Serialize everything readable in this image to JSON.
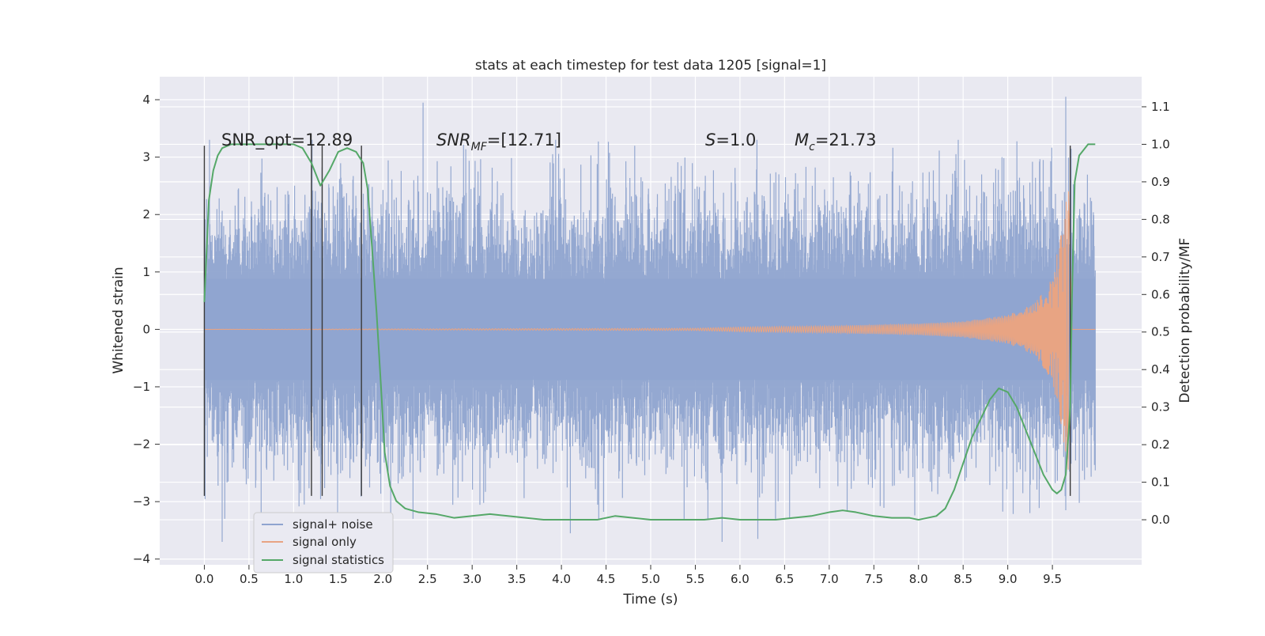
{
  "chart_data": {
    "type": "line",
    "title": "stats at each timestep for test data 1205 [signal=1]",
    "xlabel": "Time (s)",
    "ylabel": "Whitened strain",
    "y2label": "Detection probability/MF",
    "xlim": [
      -0.5,
      10.5
    ],
    "ylim": [
      -4.1,
      4.4
    ],
    "y2lim": [
      -0.12,
      1.18
    ],
    "x_ticks": [
      "0.0",
      "0.5",
      "1.0",
      "1.5",
      "2.0",
      "2.5",
      "3.0",
      "3.5",
      "4.0",
      "4.5",
      "5.0",
      "5.5",
      "6.0",
      "6.5",
      "7.0",
      "7.5",
      "8.0",
      "8.5",
      "9.0",
      "9.5"
    ],
    "y_ticks": [
      -4,
      -3,
      -2,
      -1,
      0,
      1,
      2,
      3,
      4
    ],
    "y_tick_labels": [
      "−4",
      "−3",
      "−2",
      "−1",
      "0",
      "1",
      "2",
      "3",
      "4"
    ],
    "y2_ticks": [
      0.0,
      0.1,
      0.2,
      0.3,
      0.4,
      0.5,
      0.6,
      0.7,
      0.8,
      0.9,
      1.0,
      1.1
    ],
    "y2_tick_labels": [
      "0.0",
      "0.1",
      "0.2",
      "0.3",
      "0.4",
      "0.5",
      "0.6",
      "0.7",
      "0.8",
      "0.9",
      "1.0",
      "1.1"
    ],
    "grid": true,
    "legend_position": "lower-left",
    "annotations": {
      "snr_opt": "SNR_opt=12.89",
      "snr_mf_main": "SNR",
      "snr_mf_sub": "MF",
      "snr_mf_rest": "=[12.71]",
      "s_main": "S",
      "s_rest": "=1.0",
      "mc_main": "M",
      "mc_sub": "c",
      "mc_rest": "=21.73"
    },
    "series": [
      {
        "name": "signal+ noise",
        "color": "#8fa4cf",
        "kind": "noise",
        "x_range": [
          0.0,
          9.98
        ],
        "typical_range": [
          -1.6,
          1.6
        ],
        "extremes": [
          [
            2.45,
            3.95
          ],
          [
            9.65,
            4.05
          ],
          [
            0.2,
            -3.7
          ],
          [
            4.1,
            -3.55
          ],
          [
            5.8,
            -3.7
          ],
          [
            6.2,
            -3.65
          ],
          [
            9.65,
            -3.15
          ]
        ]
      },
      {
        "name": "signal only",
        "color": "#e8a483",
        "kind": "chirp",
        "t_merge": 9.68,
        "envelope": [
          [
            0.0,
            0.0
          ],
          [
            5.5,
            0.02
          ],
          [
            6.0,
            0.04
          ],
          [
            7.0,
            0.06
          ],
          [
            8.0,
            0.1
          ],
          [
            8.5,
            0.14
          ],
          [
            9.0,
            0.25
          ],
          [
            9.3,
            0.45
          ],
          [
            9.5,
            0.9
          ],
          [
            9.6,
            1.7
          ],
          [
            9.68,
            2.5
          ],
          [
            9.72,
            0.0
          ],
          [
            9.98,
            0.0
          ]
        ]
      },
      {
        "name": "signal statistics",
        "color": "#55a868",
        "axis": "right",
        "x": [
          0.0,
          0.05,
          0.1,
          0.15,
          0.2,
          0.3,
          0.5,
          0.7,
          0.9,
          1.0,
          1.1,
          1.2,
          1.3,
          1.4,
          1.5,
          1.6,
          1.7,
          1.78,
          1.83,
          1.88,
          1.93,
          1.98,
          2.02,
          2.08,
          2.15,
          2.25,
          2.4,
          2.6,
          2.8,
          3.0,
          3.2,
          3.4,
          3.6,
          3.8,
          4.0,
          4.2,
          4.4,
          4.6,
          4.8,
          5.0,
          5.2,
          5.4,
          5.6,
          5.8,
          6.0,
          6.2,
          6.4,
          6.6,
          6.8,
          7.0,
          7.15,
          7.3,
          7.5,
          7.7,
          7.9,
          8.0,
          8.1,
          8.2,
          8.3,
          8.4,
          8.5,
          8.6,
          8.7,
          8.8,
          8.9,
          9.0,
          9.1,
          9.2,
          9.3,
          9.4,
          9.5,
          9.55,
          9.6,
          9.65,
          9.7,
          9.72,
          9.75,
          9.8,
          9.9,
          9.98
        ],
        "y": [
          0.58,
          0.85,
          0.93,
          0.97,
          0.99,
          1.0,
          1.0,
          1.0,
          1.0,
          1.0,
          0.99,
          0.95,
          0.89,
          0.93,
          0.98,
          0.99,
          0.98,
          0.95,
          0.88,
          0.72,
          0.55,
          0.35,
          0.18,
          0.09,
          0.05,
          0.03,
          0.02,
          0.015,
          0.005,
          0.01,
          0.015,
          0.01,
          0.005,
          0.0,
          0.0,
          0.0,
          0.0,
          0.01,
          0.005,
          0.0,
          0.0,
          0.0,
          0.0,
          0.005,
          0.0,
          0.0,
          0.0,
          0.005,
          0.01,
          0.02,
          0.025,
          0.02,
          0.01,
          0.005,
          0.005,
          0.0,
          0.005,
          0.01,
          0.03,
          0.08,
          0.15,
          0.22,
          0.27,
          0.32,
          0.35,
          0.34,
          0.3,
          0.24,
          0.18,
          0.12,
          0.08,
          0.07,
          0.08,
          0.12,
          0.3,
          0.6,
          0.9,
          0.97,
          1.0,
          1.0
        ]
      }
    ],
    "vertical_markers": [
      0.0,
      1.2,
      1.32,
      1.76,
      9.7
    ],
    "marker_span_y": [
      -2.9,
      3.2
    ]
  }
}
